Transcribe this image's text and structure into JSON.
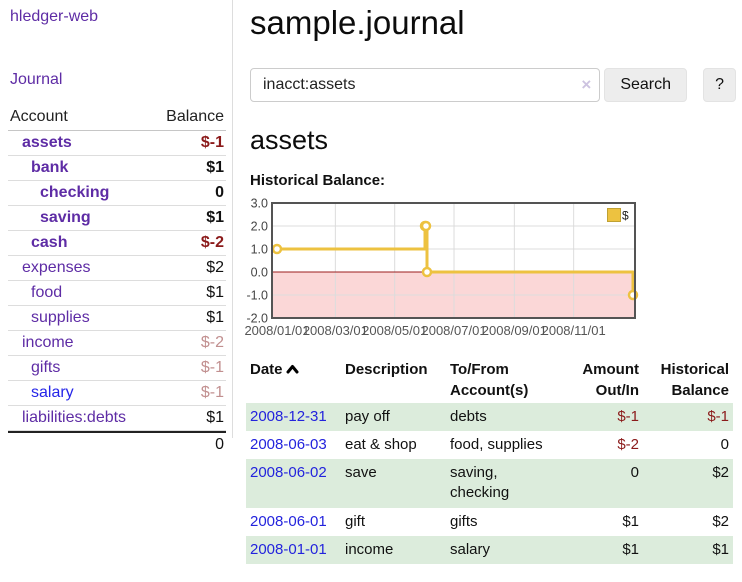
{
  "app": {
    "brand": "hledger-web",
    "nav_journal": "Journal"
  },
  "sidebar": {
    "col_account": "Account",
    "col_balance": "Balance",
    "accounts": [
      {
        "name": "assets",
        "depth": 1,
        "bold": true,
        "blue": false,
        "balance": "$-1",
        "tone": "neg"
      },
      {
        "name": "bank",
        "depth": 2,
        "bold": true,
        "blue": false,
        "balance": "$1",
        "tone": "normal"
      },
      {
        "name": "checking",
        "depth": 3,
        "bold": true,
        "blue": false,
        "balance": "0",
        "tone": "normal"
      },
      {
        "name": "saving",
        "depth": 3,
        "bold": true,
        "blue": false,
        "balance": "$1",
        "tone": "normal"
      },
      {
        "name": "cash",
        "depth": 2,
        "bold": true,
        "blue": false,
        "balance": "$-2",
        "tone": "neg"
      },
      {
        "name": "expenses",
        "depth": 1,
        "bold": false,
        "blue": false,
        "balance": "$2",
        "tone": "normal"
      },
      {
        "name": "food",
        "depth": 2,
        "bold": false,
        "blue": false,
        "balance": "$1",
        "tone": "normal"
      },
      {
        "name": "supplies",
        "depth": 2,
        "bold": false,
        "blue": false,
        "balance": "$1",
        "tone": "normal"
      },
      {
        "name": "income",
        "depth": 1,
        "bold": false,
        "blue": false,
        "balance": "$-2",
        "tone": "neg-soft"
      },
      {
        "name": "gifts",
        "depth": 2,
        "bold": false,
        "blue": false,
        "balance": "$-1",
        "tone": "neg-soft"
      },
      {
        "name": "salary",
        "depth": 2,
        "bold": false,
        "blue": true,
        "balance": "$-1",
        "tone": "neg-soft"
      },
      {
        "name": "liabilities:debts",
        "depth": 1,
        "bold": false,
        "blue": false,
        "balance": "$1",
        "tone": "normal"
      }
    ],
    "total": "0"
  },
  "header": {
    "title": "sample.journal"
  },
  "search": {
    "value": "inacct:assets",
    "clear_icon": "×",
    "button_label": "Search",
    "help_label": "?"
  },
  "account_page": {
    "title": "assets",
    "chart_label": "Historical Balance:"
  },
  "chart_data": {
    "type": "line",
    "subtype": "step-after",
    "title": "Historical Balance",
    "legend": "$",
    "legend_position": "top-right",
    "line_color": "#EDC240",
    "marker": "open-circle",
    "negative_region_color": "#fbd7d7",
    "zero_line_color": "#9b1c1c",
    "grid": true,
    "ylim": [
      -2.0,
      3.0
    ],
    "y_ticks": [
      "3.0",
      "2.0",
      "1.0",
      "0.0",
      "-1.0",
      "-2.0"
    ],
    "x_ticks": [
      "2008/01/01",
      "2008/03/01",
      "2008/05/01",
      "2008/07/01",
      "2008/09/01",
      "2008/11/01"
    ],
    "series": [
      {
        "name": "$",
        "points": [
          {
            "x": "2008-01-01",
            "y": 1
          },
          {
            "x": "2008-06-01",
            "y": 2
          },
          {
            "x": "2008-06-02",
            "y": 2
          },
          {
            "x": "2008-06-03",
            "y": 0
          },
          {
            "x": "2008-12-31",
            "y": -1
          }
        ]
      }
    ]
  },
  "register": {
    "headers": {
      "date": "Date",
      "description": "Description",
      "tofrom": "To/From Account(s)",
      "amount": "Amount Out/In",
      "balance": "Historical Balance"
    },
    "rows": [
      {
        "date": "2008-12-31",
        "description": "pay off",
        "accounts": "debts",
        "amount": "$-1",
        "amount_neg": true,
        "balance": "$-1",
        "balance_neg": true
      },
      {
        "date": "2008-06-03",
        "description": "eat & shop",
        "accounts": "food, supplies",
        "amount": "$-2",
        "amount_neg": true,
        "balance": "0",
        "balance_neg": false
      },
      {
        "date": "2008-06-02",
        "description": "save",
        "accounts": "saving, checking",
        "amount": "0",
        "amount_neg": false,
        "balance": "$2",
        "balance_neg": false
      },
      {
        "date": "2008-06-01",
        "description": "gift",
        "accounts": "gifts",
        "amount": "$1",
        "amount_neg": false,
        "balance": "$2",
        "balance_neg": false
      },
      {
        "date": "2008-01-01",
        "description": "income",
        "accounts": "salary",
        "amount": "$1",
        "amount_neg": false,
        "balance": "$1",
        "balance_neg": false
      }
    ]
  }
}
